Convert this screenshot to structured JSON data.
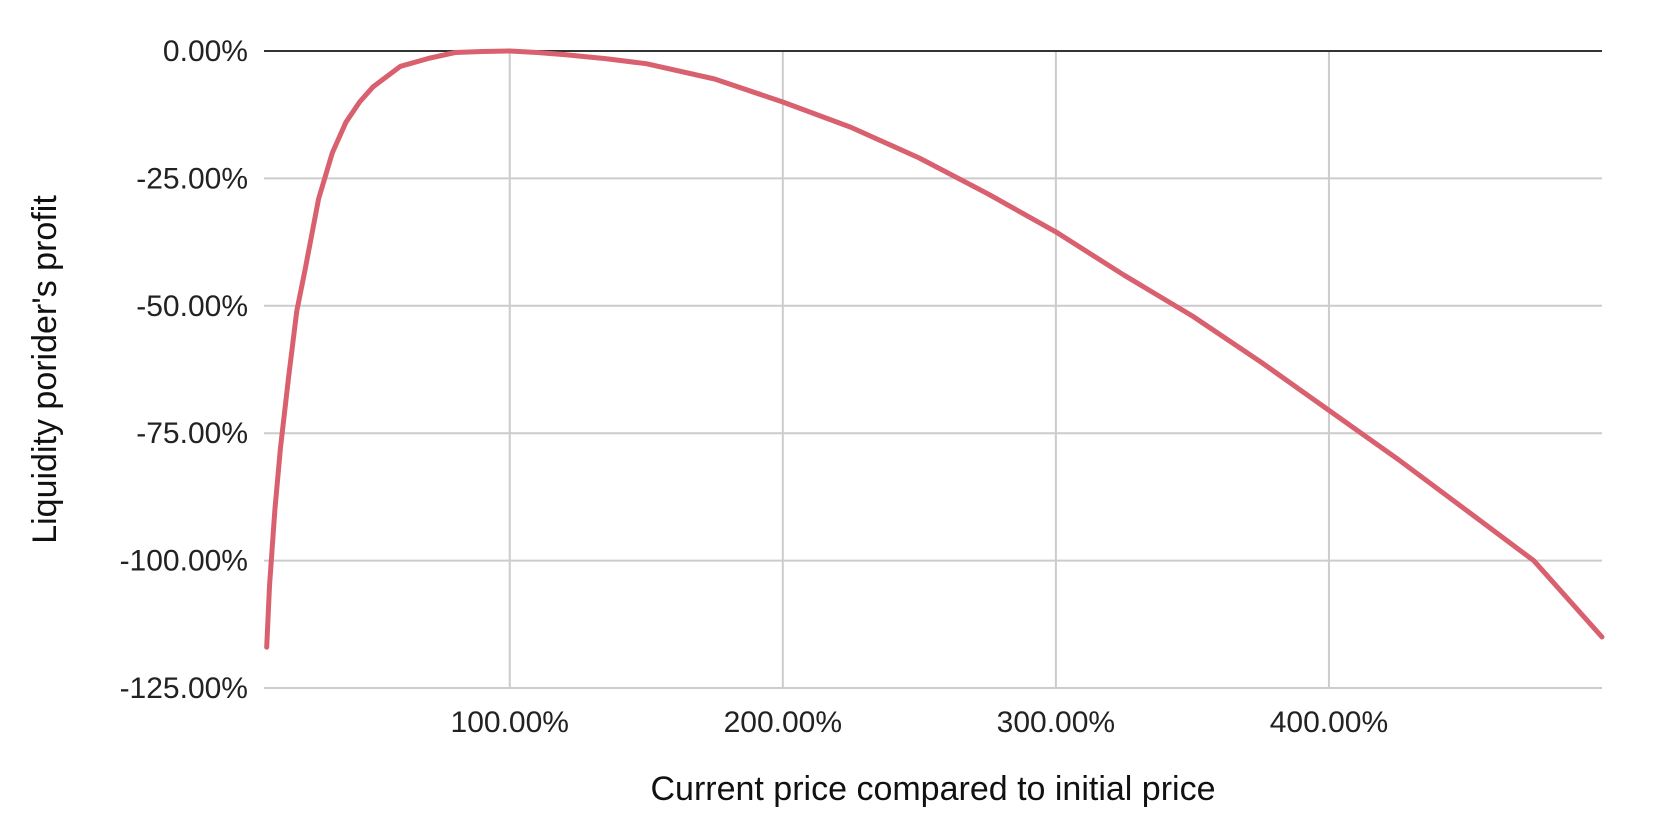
{
  "chart_data": {
    "type": "line",
    "title": "",
    "xlabel": "Current price compared to initial price",
    "ylabel": "Liquidity porider's profit",
    "xlim": [
      10,
      500
    ],
    "ylim": [
      -125,
      0
    ],
    "x_ticks": [
      {
        "value": 100,
        "label": "100.00%"
      },
      {
        "value": 200,
        "label": "200.00%"
      },
      {
        "value": 300,
        "label": "300.00%"
      },
      {
        "value": 400,
        "label": "400.00%"
      }
    ],
    "y_ticks": [
      {
        "value": 0,
        "label": "0.00%"
      },
      {
        "value": -25,
        "label": "-25.00%"
      },
      {
        "value": -50,
        "label": "-50.00%"
      },
      {
        "value": -75,
        "label": "-75.00%"
      },
      {
        "value": -100,
        "label": "-100.00%"
      },
      {
        "value": -125,
        "label": "-125.00%"
      }
    ],
    "grid": true,
    "series": [
      {
        "color": "#d9606e",
        "x": [
          11,
          12,
          14,
          16,
          19,
          22,
          25,
          30,
          35,
          40,
          45,
          50,
          60,
          70,
          80,
          90,
          100,
          110,
          120,
          135,
          150,
          175,
          200,
          225,
          250,
          275,
          300,
          325,
          350,
          375,
          400,
          425,
          450,
          475,
          500
        ],
        "y": [
          -117,
          -105,
          -90,
          -78,
          -64,
          -51,
          -43,
          -29,
          -20,
          -14,
          -10,
          -7,
          -3,
          -1.5,
          -0.3,
          -0.1,
          0,
          -0.3,
          -0.7,
          -1.5,
          -2.5,
          -5.5,
          -10,
          -15,
          -21,
          -28,
          -35.5,
          -44,
          -52,
          -61,
          -70.5,
          -80,
          -90,
          -100,
          -115
        ]
      }
    ]
  }
}
